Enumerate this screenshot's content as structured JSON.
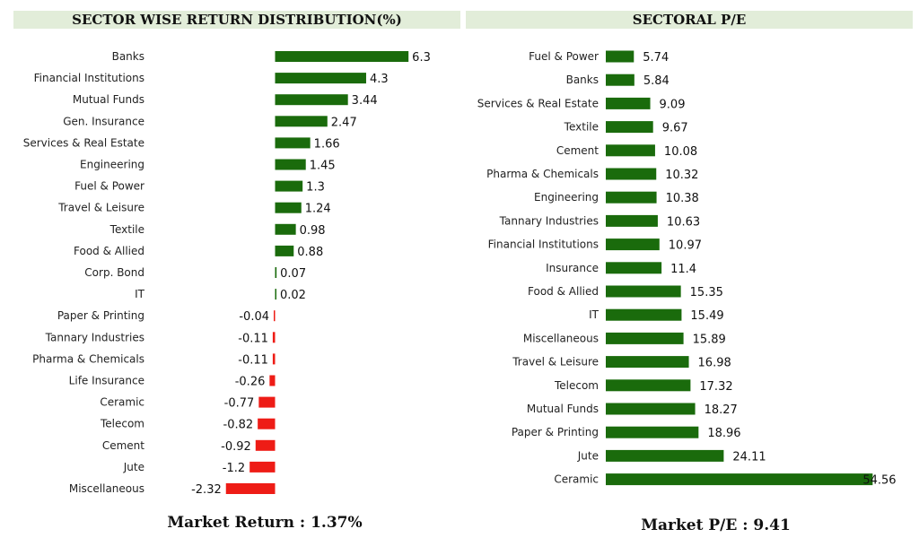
{
  "colors": {
    "positive": "#1a6b0c",
    "negative": "#ee1c16",
    "title_bg": "#e2edd9"
  },
  "chart_data": [
    {
      "type": "bar",
      "orientation": "horizontal",
      "title": "SECTOR WISE RETURN DISTRIBUTION(%)",
      "categories": [
        "Banks",
        "Financial Institutions",
        "Mutual Funds",
        "Gen. Insurance",
        "Services & Real Estate",
        "Engineering",
        "Fuel & Power",
        "Travel & Leisure",
        "Textile",
        "Food & Allied",
        "Corp. Bond",
        "IT",
        "Paper & Printing",
        "Tannary Industries",
        "Pharma & Chemicals",
        "Life Insurance",
        "Ceramic",
        "Telecom",
        "Cement",
        "Jute",
        "Miscellaneous"
      ],
      "values": [
        6.3,
        4.3,
        3.44,
        2.47,
        1.66,
        1.45,
        1.3,
        1.24,
        0.98,
        0.88,
        0.07,
        0.02,
        -0.04,
        -0.11,
        -0.11,
        -0.26,
        -0.77,
        -0.82,
        -0.92,
        -1.2,
        -2.32
      ],
      "value_labels": [
        "6.3",
        "4.3",
        "3.44",
        "2.47",
        "1.66",
        "1.45",
        "1.3",
        "1.24",
        "0.98",
        "0.88",
        "0.07",
        "0.02",
        "-0.04",
        "-0.11",
        "-0.11",
        "-0.26",
        "-0.77",
        "-0.82",
        "-0.92",
        "-1.2",
        "-2.32"
      ],
      "xlabel": "",
      "ylabel": "",
      "footer": "Market Return : 1.37%"
    },
    {
      "type": "bar",
      "orientation": "horizontal",
      "title": "SECTORAL P/E",
      "categories": [
        "Fuel & Power",
        "Banks",
        "Services & Real Estate",
        "Textile",
        "Cement",
        "Pharma & Chemicals",
        "Engineering",
        "Tannary Industries",
        "Financial Institutions",
        "Insurance",
        "Food & Allied",
        "IT",
        "Miscellaneous",
        "Travel & Leisure",
        "Telecom",
        "Mutual Funds",
        "Paper & Printing",
        "Jute",
        "Ceramic"
      ],
      "values": [
        5.74,
        5.84,
        9.09,
        9.67,
        10.08,
        10.32,
        10.38,
        10.63,
        10.97,
        11.4,
        15.35,
        15.49,
        15.89,
        16.98,
        17.32,
        18.27,
        18.96,
        24.11,
        54.56
      ],
      "value_labels": [
        "5.74",
        "5.84",
        "9.09",
        "9.67",
        "10.08",
        "10.32",
        "10.38",
        "10.63",
        "10.97",
        "11.4",
        "15.35",
        "15.49",
        "15.89",
        "16.98",
        "17.32",
        "18.27",
        "18.96",
        "24.11",
        "54.56"
      ],
      "xlabel": "",
      "ylabel": "",
      "footer": "Market P/E : 9.41"
    }
  ]
}
